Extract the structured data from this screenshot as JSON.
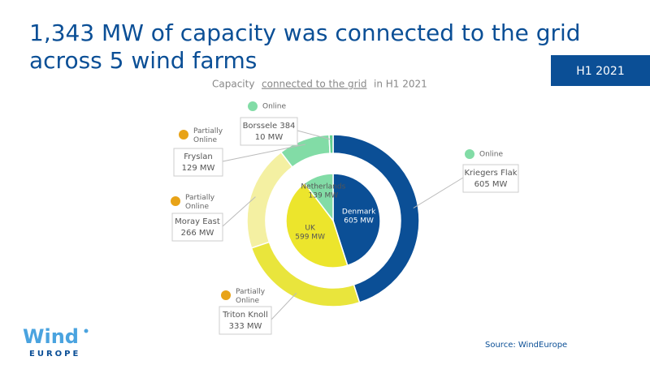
{
  "chart_data": {
    "type": "nested-pie",
    "title_lines": [
      "1,343 MW of capacity was connected to the grid",
      "across 5 wind farms"
    ],
    "badge": "H1 2021",
    "subtitle_parts": [
      "Capacity",
      "connected to the grid",
      "in H1 2021"
    ],
    "source": "Source: WindEurope",
    "logo": [
      "Wind",
      "EUROPE"
    ],
    "outer": {
      "categories": [
        "Kriegers Flak",
        "Triton Knoll",
        "Moray East",
        "Fryslan",
        "Borssele 384"
      ],
      "values": [
        605,
        333,
        266,
        129,
        10
      ],
      "value_labels": [
        "605 MW",
        "333 MW",
        "266 MW",
        "129 MW",
        "10 MW"
      ],
      "statuses": [
        "Online",
        "Partially Online",
        "Partially Online",
        "Partially Online",
        "Online"
      ],
      "colors": [
        "#0b4f96",
        "#e9e53c",
        "#f4f0a2",
        "#82dca6",
        "#5fcf90"
      ]
    },
    "inner": {
      "categories": [
        "Denmark",
        "UK",
        "Netherlands"
      ],
      "values": [
        605,
        599,
        139
      ],
      "value_labels": [
        "605 MW",
        "599 MW",
        "139 MW"
      ],
      "colors": [
        "#0b4f96",
        "#ece52c",
        "#82dca6"
      ]
    },
    "status_colors": {
      "Online": "#82dca6",
      "Partially Online": "#e8a317"
    }
  }
}
